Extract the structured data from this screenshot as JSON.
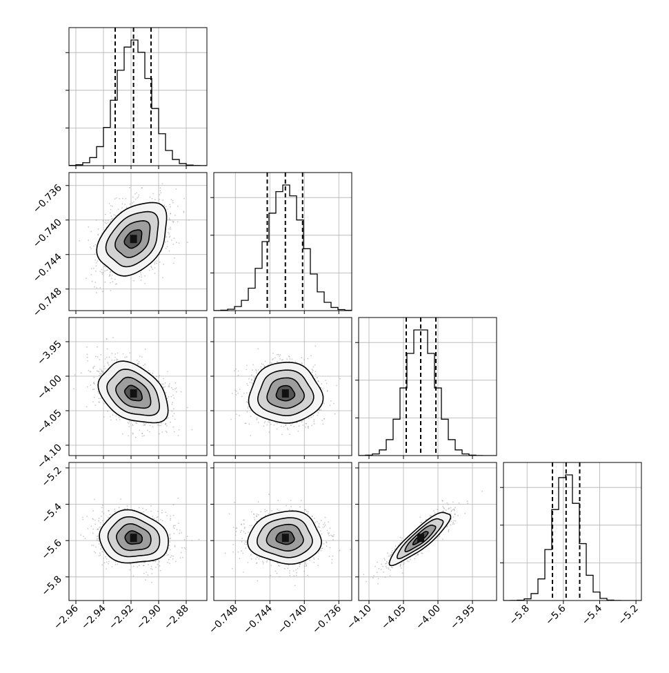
{
  "chart_data": {
    "type": "corner",
    "n_params": 4,
    "grid": true,
    "colors": {
      "line": "#000000",
      "grid": "#b0b0b0",
      "scatter": "#9a9a9a"
    },
    "params": [
      {
        "range": [
          -2.965,
          -2.865
        ],
        "ticks": [
          -2.96,
          -2.94,
          -2.92,
          -2.9,
          -2.88
        ],
        "tick_labels": [
          "−2.96",
          "−2.94",
          "−2.92",
          "−2.90",
          "−2.88"
        ],
        "mean": -2.9182,
        "sd": 0.0125,
        "quantiles": [
          -2.9315,
          -2.9182,
          -2.9055
        ]
      },
      {
        "range": [
          -0.7505,
          -0.7345
        ],
        "ticks": [
          -0.748,
          -0.744,
          -0.74,
          -0.736
        ],
        "tick_labels": [
          "−0.748",
          "−0.744",
          "−0.740",
          "−0.736"
        ],
        "mean": -0.7422,
        "sd": 0.0021,
        "quantiles": [
          -0.7443,
          -0.7422,
          -0.7402
        ]
      },
      {
        "range": [
          -4.115,
          -3.915
        ],
        "ticks": [
          -4.1,
          -4.05,
          -4.0,
          -3.95
        ],
        "tick_labels": [
          "−4.10",
          "−4.05",
          "−4.00",
          "−3.95"
        ],
        "mean": -4.025,
        "sd": 0.022,
        "quantiles": [
          -4.046,
          -4.025,
          -4.003
        ]
      },
      {
        "range": [
          -5.93,
          -5.17
        ],
        "ticks": [
          -5.8,
          -5.6,
          -5.4,
          -5.2
        ],
        "tick_labels": [
          "−5.8",
          "−5.6",
          "−5.4",
          "−5.2"
        ],
        "mean": -5.585,
        "sd": 0.072,
        "quantiles": [
          -5.66,
          -5.585,
          -5.51
        ]
      }
    ],
    "correlations": [
      {
        "x": 0,
        "y": 1,
        "rho": 0.35
      },
      {
        "x": 0,
        "y": 2,
        "rho": -0.35
      },
      {
        "x": 1,
        "y": 2,
        "rho": 0.0
      },
      {
        "x": 0,
        "y": 3,
        "rho": -0.1
      },
      {
        "x": 1,
        "y": 3,
        "rho": 0.0
      },
      {
        "x": 2,
        "y": 3,
        "rho": 0.88
      }
    ],
    "hist_bins": 20,
    "contour_levels_sigma": [
      0.5,
      1.0,
      1.5,
      2.0
    ],
    "scatter_points_per_panel": 1400
  }
}
